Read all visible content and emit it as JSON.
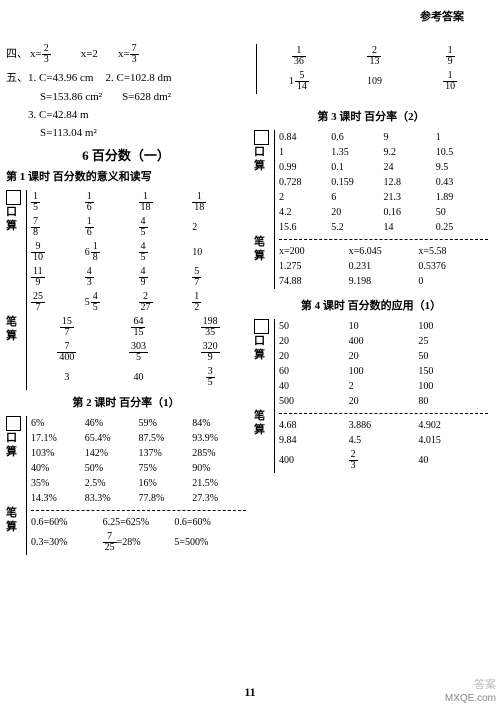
{
  "header": "参考答案",
  "pagenum": "11",
  "watermark": "MXQE.com",
  "watermark2": "答案",
  "left": {
    "q4": {
      "label": "四、",
      "items": [
        {
          "type": "eq",
          "lhs": "x=",
          "frac": [
            "2",
            "3"
          ]
        },
        {
          "type": "plain",
          "text": "x=2"
        },
        {
          "type": "eq",
          "lhs": "x=",
          "frac": [
            "7",
            "3"
          ]
        }
      ]
    },
    "q5": {
      "label": "五、",
      "sub": [
        {
          "n": "1.",
          "a": "C=43.96 cm",
          "b": "2.",
          "c": "C=102.8 dm"
        },
        {
          "a": "S=153.86 cm²",
          "c": "S=628 dm²"
        },
        {
          "n": "3.",
          "a": "C=42.84 m"
        },
        {
          "a": "S=113.04 m²"
        }
      ]
    },
    "sec6": {
      "title": "6  百分数（一）",
      "lesson1": "第 1 课时  百分数的意义和读写"
    },
    "kou1": {
      "label": "口算",
      "rows": [
        [
          [
            "1",
            "5"
          ],
          [
            "1",
            "6"
          ],
          [
            "1",
            "18"
          ],
          [
            "1",
            "18"
          ]
        ],
        [
          [
            "7",
            "8"
          ],
          [
            "1",
            "6"
          ],
          [
            "4",
            "5"
          ],
          "2"
        ],
        [
          [
            "9",
            "10"
          ],
          {
            "mix": [
              "6",
              "1",
              "8"
            ]
          },
          [
            "4",
            "5"
          ],
          "10"
        ],
        [
          [
            "11",
            "9"
          ],
          [
            "4",
            "3"
          ],
          [
            "4",
            "9"
          ],
          [
            "5",
            "7"
          ]
        ],
        [
          [
            "25",
            "7"
          ],
          {
            "mix": [
              "5",
              "4",
              "5"
            ]
          },
          [
            "2",
            "27"
          ],
          [
            "1",
            "2"
          ]
        ]
      ]
    },
    "bi1": {
      "label": "笔算",
      "top": [
        [
          "15",
          "7"
        ],
        [
          "64",
          "15"
        ],
        [
          "198",
          "35"
        ]
      ],
      "bot": [
        [
          "7",
          "400"
        ],
        [
          "303",
          "5"
        ],
        [
          "320",
          "9"
        ]
      ],
      "last": [
        "3",
        "40",
        [
          "3",
          "5"
        ]
      ]
    },
    "lesson2": "第 2 课时  百分率（1）",
    "kou2": {
      "label": "口算",
      "rows": [
        [
          "6%",
          "46%",
          "59%",
          "84%"
        ],
        [
          "17.1%",
          "65.4%",
          "87.5%",
          "93.9%"
        ],
        [
          "103%",
          "142%",
          "137%",
          "285%"
        ],
        [
          "40%",
          "50%",
          "75%",
          "90%"
        ],
        [
          "35%",
          "2.5%",
          "16%",
          "21.5%"
        ],
        [
          "14.3%",
          "83.3%",
          "77.8%",
          "27.3%"
        ]
      ]
    },
    "bi2": {
      "label": "笔算",
      "rows": [
        [
          "0.6=60%",
          "6.25=625%",
          "0.6=60%"
        ],
        [
          {
            "l": "0.3=30%"
          },
          {
            "frac": [
              "7",
              "25"
            ],
            "r": "=28%"
          },
          {
            "l": "5=500%"
          }
        ]
      ]
    }
  },
  "right": {
    "top": {
      "rows": [
        [
          [
            "1",
            "36"
          ],
          [
            "2",
            "13"
          ],
          [
            "1",
            "9"
          ]
        ],
        [
          {
            "mix": [
              "1",
              "5",
              "14"
            ]
          },
          "109",
          [
            "1",
            "10"
          ]
        ]
      ]
    },
    "lesson3": "第 3 课时  百分率（2）",
    "kou3": {
      "label": "口算",
      "rows": [
        [
          "0.84",
          "0.6",
          "9",
          "1"
        ],
        [
          "1",
          "1.35",
          "9.2",
          "10.5"
        ],
        [
          "0.99",
          "0.1",
          "24",
          "9.5"
        ],
        [
          "0.728",
          "0.159",
          "12.8",
          "0.43"
        ],
        [
          "2",
          "6",
          "21.3",
          "1.89"
        ],
        [
          "4.2",
          "20",
          "0.16",
          "50"
        ],
        [
          "15.6",
          "5.2",
          "14",
          "0.25"
        ]
      ]
    },
    "bi3": {
      "label": "笔算",
      "rows": [
        [
          "x=200",
          "x=6.045",
          "x=5.58"
        ],
        [
          "1.275",
          "0.231",
          "0.5376"
        ],
        [
          "74.88",
          "9.198",
          "0"
        ]
      ]
    },
    "lesson4": "第 4 课时  百分数的应用（1）",
    "kou4": {
      "label": "口算",
      "rows": [
        [
          "50",
          "10",
          "100"
        ],
        [
          "20",
          "400",
          "25"
        ],
        [
          "20",
          "20",
          "50"
        ],
        [
          "60",
          "100",
          "150"
        ],
        [
          "40",
          "2",
          "100"
        ],
        [
          "500",
          "20",
          "80"
        ]
      ]
    },
    "bi4": {
      "label": "笔算",
      "rows": [
        [
          "4.68",
          "3.886",
          "4.902"
        ],
        [
          "9.84",
          "4.5",
          "4.015"
        ],
        [
          "400",
          [
            "2",
            "3"
          ],
          "40"
        ]
      ]
    }
  }
}
